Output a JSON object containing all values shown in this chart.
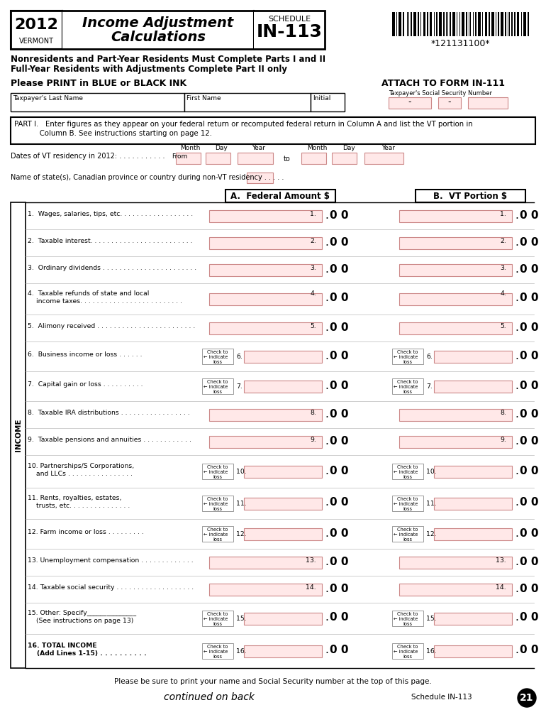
{
  "title_year": "2012",
  "title_state": "VERMONT",
  "title_form_line1": "Income Adjustment",
  "title_form_line2": "Calculations",
  "schedule_label": "SCHEDULE",
  "schedule_num": "IN-113",
  "barcode_text": "*121131100*",
  "line1_notice": "Nonresidents and Part-Year Residents Must Complete Parts I and II",
  "line2_notice": "Full-Year Residents with Adjustments Complete Part II only",
  "print_notice": "Please PRINT in BLUE or BLACK INK",
  "attach_notice": "ATTACH TO FORM IN-111",
  "ssn_label": "Taxpayer's Social Security Number",
  "taxpayer_last": "Taxpayer's Last Name",
  "first_name": "First Name",
  "initial": "Initial",
  "part1_line1": "PART I.   Enter figures as they appear on your federal return or recomputed federal return in Column A and list the VT portion in",
  "part1_line2": "           Column B. See instructions starting on page 12.",
  "dates_label": "Dates of VT residency in 2012: . . . . . . . . . . .",
  "from_label": "From",
  "to_label": "to",
  "month_label": "Month",
  "day_label": "Day",
  "year_label": "Year",
  "name_state_label": "Name of state(s), Canadian province or country during non-VT residency . . . . .",
  "col_a_header": "A.  Federal Amount $",
  "col_b_header": "B.  VT Portion $",
  "income_label": "INCOME",
  "check_to": "Check to",
  "indicate": "← indicate",
  "loss": "loss",
  "lines": [
    {
      "num": "1",
      "label": "1.  Wages, salaries, tips, etc. . . . . . . . . . . . . . . . . .",
      "num_right": "1.",
      "has_check": false,
      "two_line": false
    },
    {
      "num": "2",
      "label": "2.  Taxable interest. . . . . . . . . . . . . . . . . . . . . . . . .",
      "num_right": "2.",
      "has_check": false,
      "two_line": false
    },
    {
      "num": "3",
      "label": "3.  Ordinary dividends . . . . . . . . . . . . . . . . . . . . . . .",
      "num_right": "3.",
      "has_check": false,
      "two_line": false
    },
    {
      "num": "4",
      "label": "4.  Taxable refunds of state and local",
      "label2": "    income taxes. . . . . . . . . . . . . . . . . . . . . . . . .",
      "num_right": "4.",
      "has_check": false,
      "two_line": true
    },
    {
      "num": "5",
      "label": "5.  Alimony received . . . . . . . . . . . . . . . . . . . . . . . .",
      "num_right": "5.",
      "has_check": false,
      "two_line": false
    },
    {
      "num": "6",
      "label": "6.  Business income or loss . . . . . .",
      "num_right": "6.",
      "has_check": true,
      "two_line": false
    },
    {
      "num": "7",
      "label": "7.  Capital gain or loss . . . . . . . . . .",
      "num_right": "7.",
      "has_check": true,
      "two_line": false
    },
    {
      "num": "8",
      "label": "8.  Taxable IRA distributions . . . . . . . . . . . . . . . . .",
      "num_right": "8.",
      "has_check": false,
      "two_line": false
    },
    {
      "num": "9",
      "label": "9.  Taxable pensions and annuities . . . . . . . . . . . .",
      "num_right": "9.",
      "has_check": false,
      "two_line": false
    },
    {
      "num": "10",
      "label": "10. Partnerships/S Corporations,",
      "label2": "    and LLCs . . . . . . . . . . . . . . . .",
      "num_right": "10.",
      "has_check": true,
      "two_line": true
    },
    {
      "num": "11",
      "label": "11. Rents, royalties, estates,",
      "label2": "    trusts, etc. . . . . . . . . . . . . . .",
      "num_right": "11.",
      "has_check": true,
      "two_line": true
    },
    {
      "num": "12",
      "label": "12. Farm income or loss . . . . . . . . .",
      "num_right": "12.",
      "has_check": true,
      "two_line": false
    },
    {
      "num": "13",
      "label": "13. Unemployment compensation . . . . . . . . . . . . .",
      "num_right": "13.",
      "has_check": false,
      "two_line": false
    },
    {
      "num": "14",
      "label": "14. Taxable social security . . . . . . . . . . . . . . . . . . .",
      "num_right": "14.",
      "has_check": false,
      "two_line": false
    },
    {
      "num": "15",
      "label": "15. Other: Specify_______________",
      "label2": "    (See instructions on page 13)",
      "num_right": "15.",
      "has_check": true,
      "two_line": true
    },
    {
      "num": "16",
      "label": "16. TOTAL INCOME",
      "label2": "    (Add Lines 1-15) . . . . . . . . . .",
      "num_right": "16.",
      "has_check": true,
      "two_line": true,
      "bold": true
    }
  ],
  "footer_text": "Please be sure to print your name and Social Security number at the top of this page.",
  "continued_text": "continued on back",
  "schedule_footer": "Schedule IN-113",
  "page_num": "21",
  "bg_color": "#ffffff",
  "input_box_color": "#ffe8e8",
  "input_edge_color": "#cc8888",
  "check_box_color": "#ffffff",
  "check_edge_color": "#999999"
}
